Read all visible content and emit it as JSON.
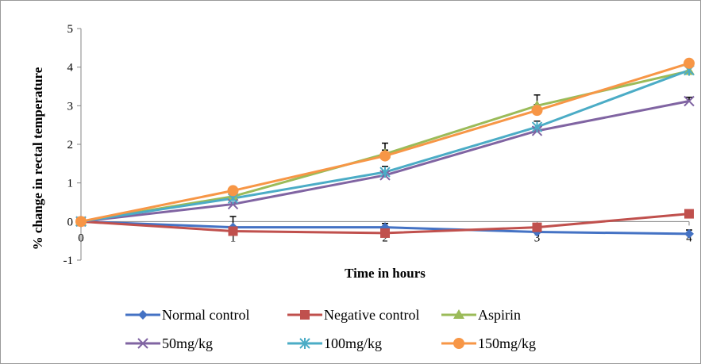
{
  "chart_data": {
    "type": "line",
    "xlabel": "Time in hours",
    "ylabel": "% change in rectal temperature",
    "x": [
      0,
      1,
      2,
      3,
      4
    ],
    "x_ticks": [
      "0",
      "1",
      "2",
      "3",
      "4"
    ],
    "y_ticks": [
      "-1",
      "0",
      "1",
      "2",
      "3",
      "4",
      "5"
    ],
    "xlim": [
      0,
      4
    ],
    "ylim": [
      -1,
      5
    ],
    "grid": false,
    "legend_position": "bottom",
    "series": [
      {
        "name": "Normal control",
        "color": "#4472c4",
        "marker": "diamond",
        "values": [
          0,
          -0.15,
          -0.15,
          -0.27,
          -0.32
        ],
        "errors": [
          0,
          0.28,
          0.1,
          0,
          0.1
        ]
      },
      {
        "name": "Negative control",
        "color": "#c0504d",
        "marker": "square",
        "values": [
          0,
          -0.25,
          -0.3,
          -0.15,
          0.2
        ],
        "errors": [
          0,
          0.1,
          0.1,
          0,
          0
        ]
      },
      {
        "name": "Aspirin",
        "color": "#9bbb59",
        "marker": "triangle",
        "values": [
          0,
          0.65,
          1.75,
          3.0,
          3.9
        ],
        "errors": [
          0,
          0,
          0.28,
          0.28,
          0.1
        ]
      },
      {
        "name": "50mg/kg",
        "color": "#8064a2",
        "marker": "x",
        "values": [
          0,
          0.45,
          1.2,
          2.35,
          3.12
        ],
        "errors": [
          0,
          0,
          0.1,
          0,
          0.1
        ]
      },
      {
        "name": "100mg/kg",
        "color": "#4bacc6",
        "marker": "star",
        "values": [
          0,
          0.6,
          1.28,
          2.45,
          3.92
        ],
        "errors": [
          0,
          0,
          0.15,
          0.15,
          0.1
        ]
      },
      {
        "name": "150mg/kg",
        "color": "#f79646",
        "marker": "circle",
        "values": [
          0,
          0.8,
          1.7,
          2.88,
          4.1
        ],
        "errors": [
          0,
          0,
          0.15,
          0.15,
          0.1
        ]
      }
    ]
  }
}
